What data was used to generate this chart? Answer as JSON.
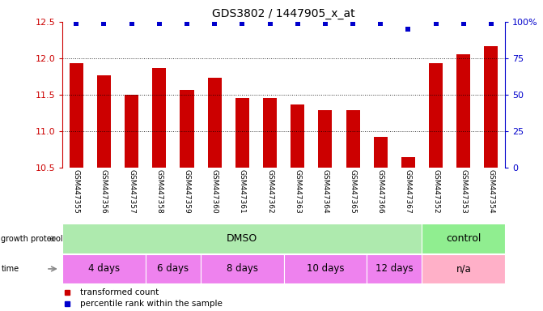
{
  "title": "GDS3802 / 1447905_x_at",
  "samples": [
    "GSM447355",
    "GSM447356",
    "GSM447357",
    "GSM447358",
    "GSM447359",
    "GSM447360",
    "GSM447361",
    "GSM447362",
    "GSM447363",
    "GSM447364",
    "GSM447365",
    "GSM447366",
    "GSM447367",
    "GSM447352",
    "GSM447353",
    "GSM447354"
  ],
  "bar_values": [
    11.93,
    11.77,
    11.5,
    11.87,
    11.57,
    11.73,
    11.46,
    11.46,
    11.37,
    11.29,
    11.29,
    10.92,
    10.65,
    11.93,
    12.06,
    12.17
  ],
  "percentile_values": [
    99,
    99,
    99,
    99,
    99,
    99,
    99,
    99,
    99,
    99,
    99,
    99,
    95,
    99,
    99,
    99
  ],
  "bar_color": "#CC0000",
  "percentile_color": "#0000CC",
  "ylim_left": [
    10.5,
    12.5
  ],
  "ylim_right": [
    0,
    100
  ],
  "yticks_left": [
    10.5,
    11.0,
    11.5,
    12.0,
    12.5
  ],
  "yticks_right": [
    0,
    25,
    50,
    75,
    100
  ],
  "grid_values": [
    11.0,
    11.5,
    12.0
  ],
  "background_color": "#FFFFFF",
  "tick_label_color_left": "#CC0000",
  "tick_label_color_right": "#0000CC",
  "bar_width": 0.5,
  "label_area_color": "#D0D0D0",
  "dmso_color": "#AEEAAE",
  "control_color": "#90EE90",
  "time_color_main": "#EE82EE",
  "time_color_na": "#FFB0C8",
  "growth_protocol_groups": [
    {
      "label": "DMSO",
      "start": 0,
      "end": 13
    },
    {
      "label": "control",
      "start": 13,
      "end": 16
    }
  ],
  "time_groups": [
    {
      "label": "4 days",
      "start": 0,
      "end": 3
    },
    {
      "label": "6 days",
      "start": 3,
      "end": 5
    },
    {
      "label": "8 days",
      "start": 5,
      "end": 8
    },
    {
      "label": "10 days",
      "start": 8,
      "end": 11
    },
    {
      "label": "12 days",
      "start": 11,
      "end": 13
    },
    {
      "label": "n/a",
      "start": 13,
      "end": 16
    }
  ],
  "legend_items": [
    {
      "label": "transformed count",
      "color": "#CC0000"
    },
    {
      "label": "percentile rank within the sample",
      "color": "#0000CC"
    }
  ]
}
